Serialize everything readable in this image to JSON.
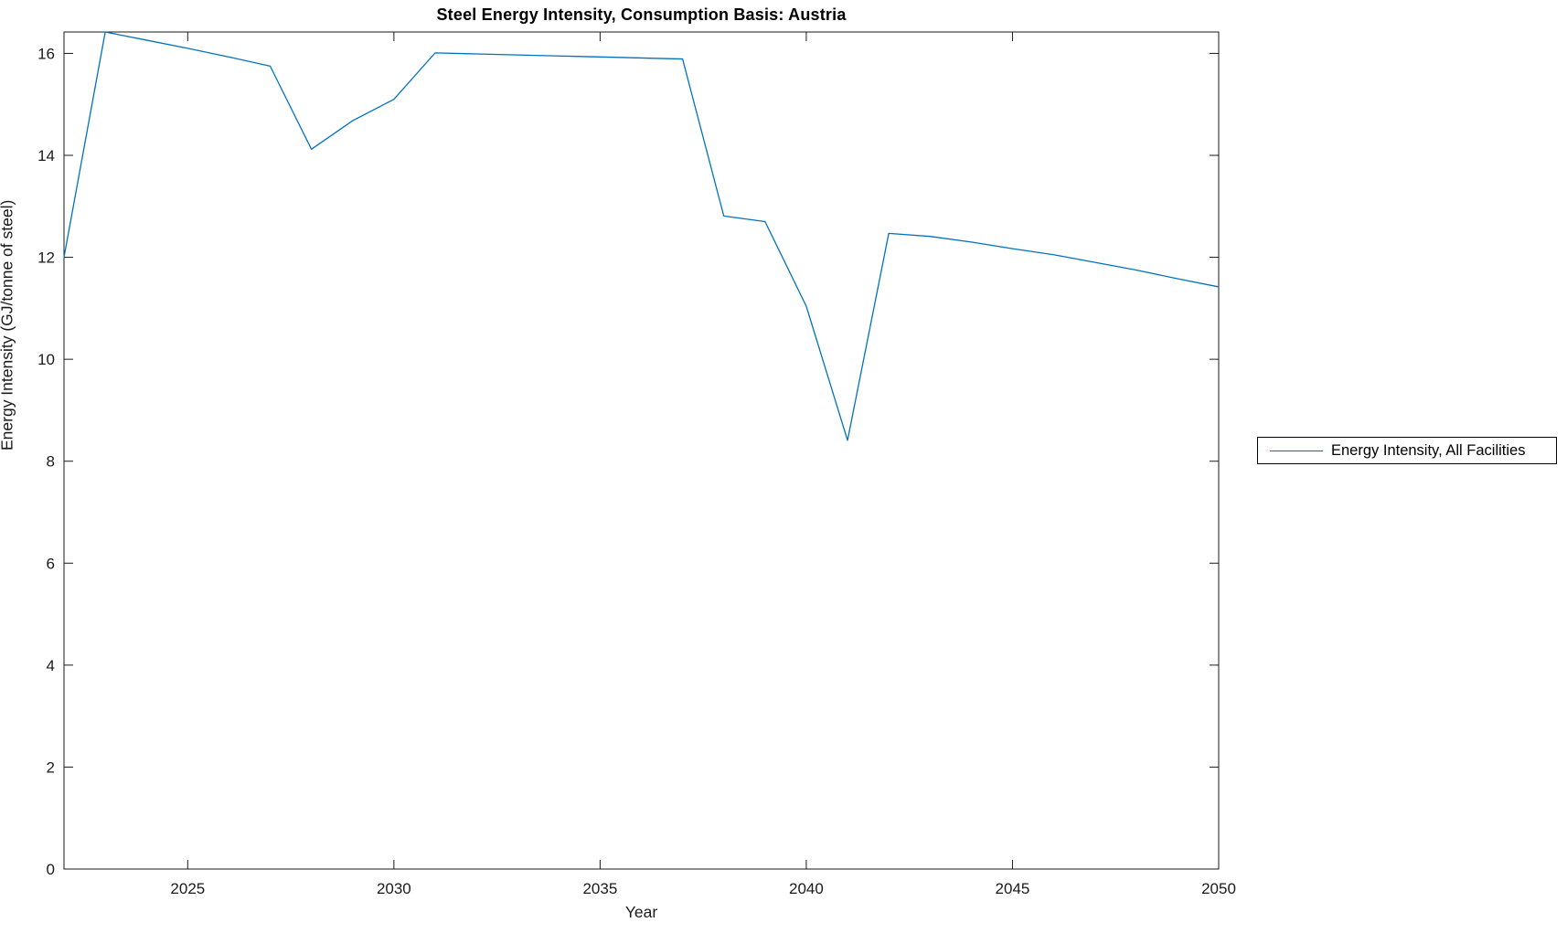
{
  "figure": {
    "background": "#ffffff",
    "text_color": "#1a1a1a",
    "axis_color": "#1a1a1a"
  },
  "chart_data": {
    "type": "line",
    "title": "Steel Energy Intensity, Consumption Basis: Austria",
    "xlabel": "Year",
    "ylabel": "Energy Intensity (GJ/tonne of steel)",
    "xlim": [
      2022,
      2050
    ],
    "ylim": [
      0,
      16.42
    ],
    "xticks": [
      2025,
      2030,
      2035,
      2040,
      2045,
      2050
    ],
    "yticks": [
      0,
      2,
      4,
      6,
      8,
      10,
      12,
      14,
      16
    ],
    "grid": false,
    "box": true,
    "legend_position": "right-outside",
    "series": [
      {
        "name": "Energy Intensity, All Facilities",
        "color": "#0072BD",
        "x": [
          2022,
          2023,
          2024,
          2025,
          2026,
          2027,
          2028,
          2029,
          2030,
          2031,
          2032,
          2033,
          2034,
          2035,
          2036,
          2037,
          2038,
          2039,
          2040,
          2041,
          2042,
          2043,
          2044,
          2045,
          2046,
          2047,
          2048,
          2049,
          2050
        ],
        "values": [
          12.0,
          16.42,
          16.26,
          16.1,
          15.93,
          15.75,
          14.12,
          14.68,
          15.1,
          16.01,
          15.99,
          15.97,
          15.95,
          15.93,
          15.91,
          15.89,
          12.81,
          12.7,
          11.04,
          8.41,
          12.47,
          12.41,
          12.3,
          12.17,
          12.05,
          11.9,
          11.75,
          11.58,
          11.42
        ]
      }
    ]
  }
}
